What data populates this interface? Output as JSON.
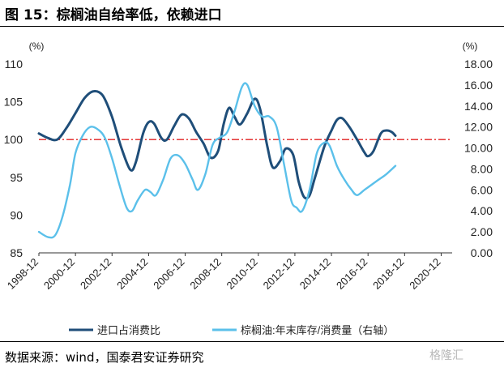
{
  "figure": {
    "title": "图 15：棕榈油自给率低，依赖进口",
    "source": "数据来源：wind，国泰君安证券研究",
    "watermark": "格隆汇"
  },
  "chart_data": {
    "type": "line",
    "x_ticks": [
      "1998-12",
      "2000-12",
      "2002-12",
      "2004-12",
      "2006-12",
      "2008-12",
      "2010-12",
      "2012-12",
      "2014-12",
      "2016-12",
      "2018-12",
      "2020-12"
    ],
    "left_axis": {
      "unit": "(%)",
      "ylim": [
        85,
        110
      ],
      "ticks": [
        "85",
        "90",
        "95",
        "100",
        "105",
        "110"
      ]
    },
    "right_axis": {
      "unit": "(%)",
      "ylim": [
        0,
        18
      ],
      "ticks": [
        "0.00",
        "2.00",
        "4.00",
        "6.00",
        "8.00",
        "10.00",
        "12.00",
        "14.00",
        "16.00",
        "18.00"
      ]
    },
    "reference_line": {
      "axis": "left",
      "value": 100,
      "color": "#e02020",
      "style": "dash-dot"
    },
    "series": [
      {
        "name": "进口占消费比",
        "axis": "left",
        "color": "#1f4e79",
        "points": [
          [
            1998.9,
            100.8
          ],
          [
            1999.4,
            100.2
          ],
          [
            1999.9,
            100.0
          ],
          [
            2000.4,
            101.5
          ],
          [
            2000.9,
            103.5
          ],
          [
            2001.4,
            105.5
          ],
          [
            2001.9,
            106.4
          ],
          [
            2002.4,
            105.8
          ],
          [
            2002.9,
            103.0
          ],
          [
            2003.4,
            99.0
          ],
          [
            2003.9,
            96.0
          ],
          [
            2004.2,
            97.0
          ],
          [
            2004.6,
            100.8
          ],
          [
            2004.9,
            102.3
          ],
          [
            2005.2,
            102.1
          ],
          [
            2005.6,
            100.2
          ],
          [
            2005.9,
            100.0
          ],
          [
            2006.3,
            101.8
          ],
          [
            2006.7,
            103.3
          ],
          [
            2007.1,
            102.8
          ],
          [
            2007.5,
            101.0
          ],
          [
            2007.9,
            99.5
          ],
          [
            2008.3,
            97.6
          ],
          [
            2008.7,
            98.5
          ],
          [
            2009.0,
            102.0
          ],
          [
            2009.3,
            104.2
          ],
          [
            2009.6,
            103.0
          ],
          [
            2009.9,
            102.0
          ],
          [
            2010.3,
            103.5
          ],
          [
            2010.7,
            105.4
          ],
          [
            2011.0,
            104.0
          ],
          [
            2011.4,
            99.0
          ],
          [
            2011.7,
            96.3
          ],
          [
            2012.1,
            97.2
          ],
          [
            2012.4,
            98.8
          ],
          [
            2012.8,
            98.0
          ],
          [
            2013.1,
            94.5
          ],
          [
            2013.4,
            92.4
          ],
          [
            2013.7,
            92.6
          ],
          [
            2014.0,
            95.0
          ],
          [
            2014.5,
            99.0
          ],
          [
            2014.9,
            101.2
          ],
          [
            2015.2,
            102.6
          ],
          [
            2015.5,
            102.8
          ],
          [
            2015.9,
            101.6
          ],
          [
            2016.3,
            100.0
          ],
          [
            2016.7,
            98.3
          ],
          [
            2016.9,
            97.8
          ],
          [
            2017.2,
            98.5
          ],
          [
            2017.6,
            100.8
          ],
          [
            2017.9,
            101.2
          ],
          [
            2018.2,
            101.0
          ],
          [
            2018.4,
            100.5
          ]
        ]
      },
      {
        "name": "棕榈油:年末库存/消费量（右轴）",
        "axis": "right",
        "color": "#5bc0ea",
        "points": [
          [
            1998.9,
            2.0
          ],
          [
            1999.4,
            1.5
          ],
          [
            1999.8,
            1.7
          ],
          [
            2000.2,
            3.5
          ],
          [
            2000.6,
            6.5
          ],
          [
            2000.9,
            9.5
          ],
          [
            2001.3,
            11.2
          ],
          [
            2001.7,
            12.0
          ],
          [
            2002.1,
            11.8
          ],
          [
            2002.5,
            11.0
          ],
          [
            2002.9,
            9.0
          ],
          [
            2003.3,
            6.5
          ],
          [
            2003.7,
            4.3
          ],
          [
            2004.0,
            4.0
          ],
          [
            2004.3,
            5.0
          ],
          [
            2004.7,
            6.0
          ],
          [
            2005.0,
            5.8
          ],
          [
            2005.3,
            5.5
          ],
          [
            2005.7,
            7.0
          ],
          [
            2006.1,
            9.0
          ],
          [
            2006.5,
            9.3
          ],
          [
            2006.9,
            8.5
          ],
          [
            2007.3,
            7.0
          ],
          [
            2007.6,
            6.0
          ],
          [
            2008.0,
            7.5
          ],
          [
            2008.4,
            10.3
          ],
          [
            2008.8,
            11.0
          ],
          [
            2009.2,
            11.5
          ],
          [
            2009.6,
            13.5
          ],
          [
            2010.0,
            15.8
          ],
          [
            2010.3,
            16.0
          ],
          [
            2010.7,
            14.0
          ],
          [
            2011.1,
            13.0
          ],
          [
            2011.5,
            13.0
          ],
          [
            2011.9,
            12.0
          ],
          [
            2012.3,
            8.5
          ],
          [
            2012.7,
            5.0
          ],
          [
            2013.0,
            4.3
          ],
          [
            2013.3,
            4.0
          ],
          [
            2013.7,
            6.0
          ],
          [
            2014.1,
            9.5
          ],
          [
            2014.5,
            10.5
          ],
          [
            2014.8,
            10.2
          ],
          [
            2015.2,
            8.3
          ],
          [
            2015.6,
            7.0
          ],
          [
            2016.0,
            6.0
          ],
          [
            2016.3,
            5.5
          ],
          [
            2016.7,
            6.0
          ],
          [
            2017.1,
            6.5
          ],
          [
            2017.5,
            7.0
          ],
          [
            2017.9,
            7.5
          ],
          [
            2018.4,
            8.3
          ]
        ]
      }
    ],
    "legend": {
      "placement": "bottom"
    }
  }
}
